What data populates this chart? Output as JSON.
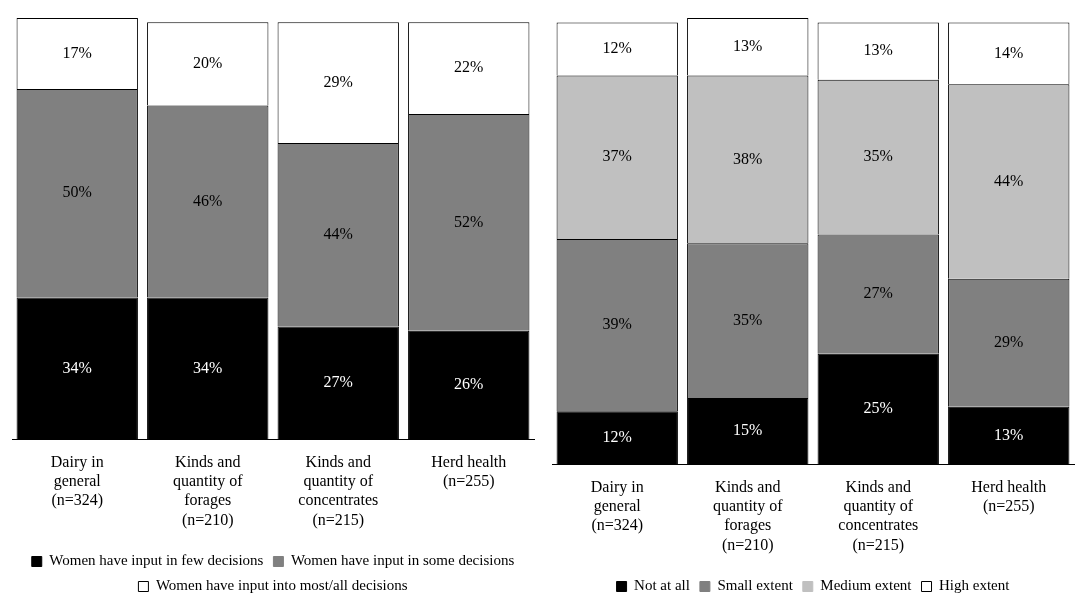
{
  "chart_data": [
    {
      "type": "bar",
      "stacked": true,
      "categories": [
        "Dairy in general (n=324)",
        "Kinds and quantity of forages (n=210)",
        "Kinds and quantity of concentrates (n=215)",
        "Herd health (n=255)"
      ],
      "tick_labels": "x",
      "grid": false,
      "legend": "bottom",
      "series": [
        {
          "name": "Women have input in few decisions",
          "color": "#000000",
          "values": [
            34,
            34,
            27,
            26
          ],
          "value_labels": [
            "34%",
            "34%",
            "27%",
            "26%"
          ]
        },
        {
          "name": "Women have input in some decisions",
          "color": "#808080",
          "values": [
            50,
            46,
            44,
            52
          ],
          "value_labels": [
            "50%",
            "46%",
            "44%",
            "52%"
          ]
        },
        {
          "name": "Women have input into most/all decisions",
          "color": "#ffffff",
          "values": [
            17,
            20,
            29,
            22
          ],
          "value_labels": [
            "17%",
            "20%",
            "29%",
            "22%"
          ]
        }
      ]
    },
    {
      "type": "bar",
      "stacked": true,
      "categories": [
        "Dairy in general (n=324)",
        "Kinds and quantity of forages (n=210)",
        "Kinds and quantity of concentrates (n=215)",
        "Herd health (n=255)"
      ],
      "tick_labels": "x",
      "grid": false,
      "legend": "bottom",
      "series": [
        {
          "name": "Not at all",
          "color": "#000000",
          "values": [
            12,
            15,
            25,
            13
          ],
          "value_labels": [
            "12%",
            "15%",
            "25%",
            "13%"
          ]
        },
        {
          "name": "Small extent",
          "color": "#808080",
          "values": [
            39,
            35,
            27,
            29
          ],
          "value_labels": [
            "39%",
            "35%",
            "27%",
            "29%"
          ]
        },
        {
          "name": "Medium extent",
          "color": "#c0c0c0",
          "values": [
            37,
            38,
            35,
            44
          ],
          "value_labels": [
            "37%",
            "38%",
            "35%",
            "44%"
          ]
        },
        {
          "name": "High extent",
          "color": "#ffffff",
          "values": [
            12,
            13,
            13,
            14
          ],
          "value_labels": [
            "12%",
            "13%",
            "13%",
            "14%"
          ]
        }
      ]
    }
  ]
}
